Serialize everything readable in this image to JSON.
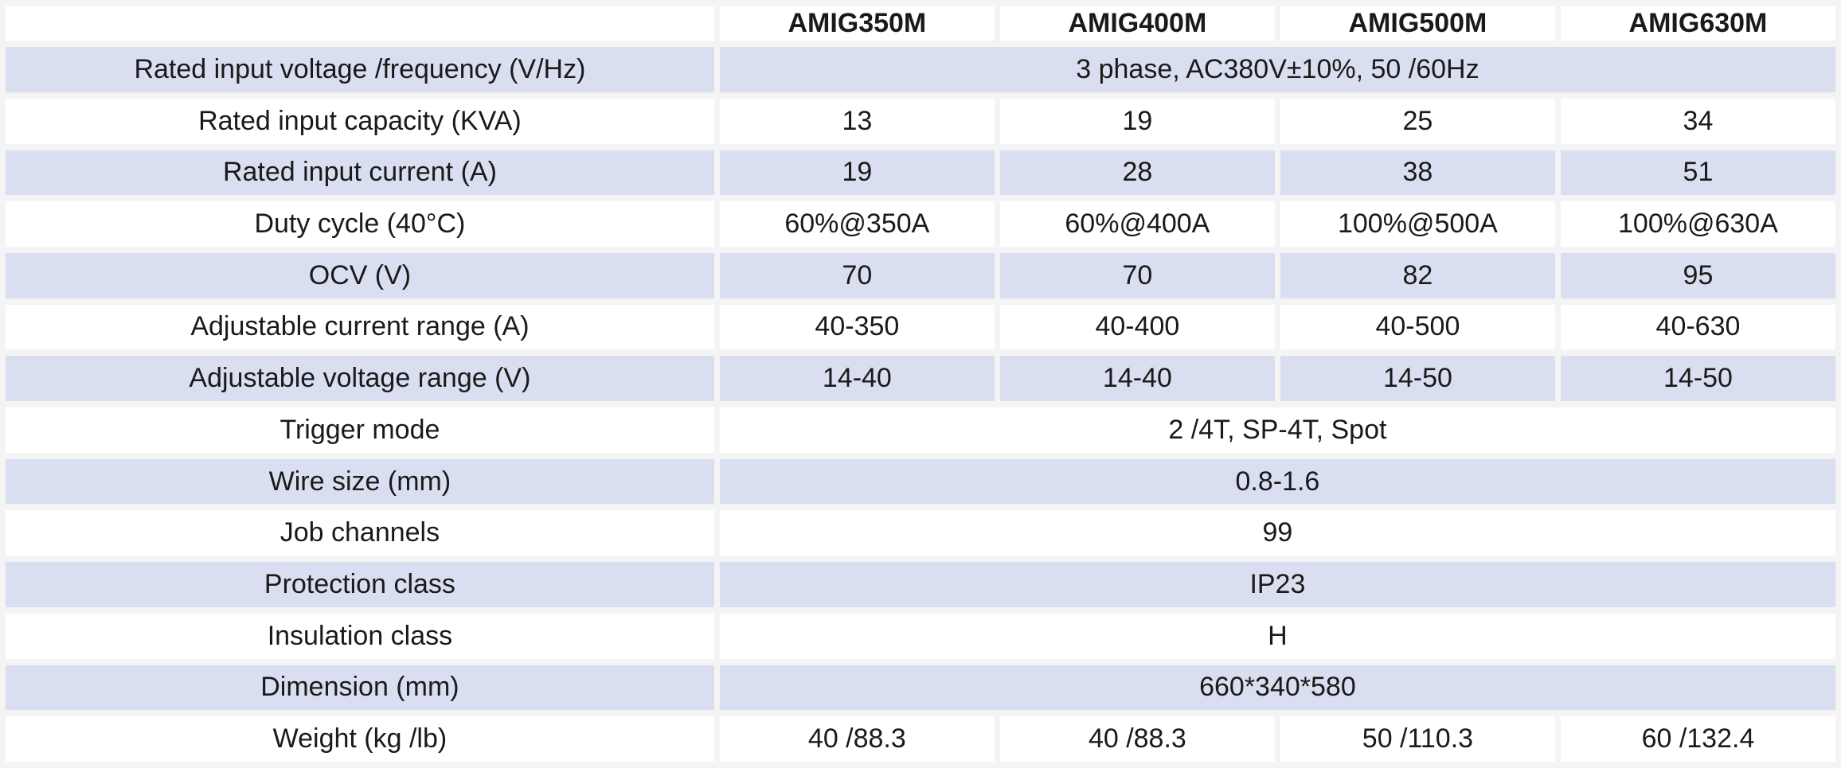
{
  "colors": {
    "canvas": "#F4F4F5",
    "cell": "#FFFFFF",
    "stripe": "#D9DFF0",
    "text": "#1A1A1A"
  },
  "table": {
    "columns": [
      "",
      "AMIG350M",
      "AMIG400M",
      "AMIG500M",
      "AMIG630M"
    ],
    "rows": [
      {
        "label": "Rated input voltage /frequency (V/Hz)",
        "span": true,
        "value": "3 phase, AC380V±10%, 50 /60Hz"
      },
      {
        "label": "Rated input capacity (KVA)",
        "span": false,
        "values": [
          "13",
          "19",
          "25",
          "34"
        ]
      },
      {
        "label": "Rated input current (A)",
        "span": false,
        "values": [
          "19",
          "28",
          "38",
          "51"
        ]
      },
      {
        "label": "Duty cycle (40°C)",
        "span": false,
        "values": [
          "60%@350A",
          "60%@400A",
          "100%@500A",
          "100%@630A"
        ]
      },
      {
        "label": "OCV (V)",
        "span": false,
        "values": [
          "70",
          "70",
          "82",
          "95"
        ]
      },
      {
        "label": "Adjustable current range (A)",
        "span": false,
        "values": [
          "40-350",
          "40-400",
          "40-500",
          "40-630"
        ]
      },
      {
        "label": "Adjustable voltage range (V)",
        "span": false,
        "values": [
          "14-40",
          "14-40",
          "14-50",
          "14-50"
        ]
      },
      {
        "label": "Trigger mode",
        "span": true,
        "value": "2 /4T, SP-4T, Spot"
      },
      {
        "label": "Wire size (mm)",
        "span": true,
        "value": "0.8-1.6"
      },
      {
        "label": "Job channels",
        "span": true,
        "value": "99"
      },
      {
        "label": "Protection class",
        "span": true,
        "value": "IP23"
      },
      {
        "label": "Insulation class",
        "span": true,
        "value": "H"
      },
      {
        "label": "Dimension (mm)",
        "span": true,
        "value": "660*340*580"
      },
      {
        "label": "Weight (kg /lb)",
        "span": false,
        "values": [
          "40 /88.3",
          "40 /88.3",
          "50 /110.3",
          "60 /132.4"
        ]
      }
    ]
  }
}
